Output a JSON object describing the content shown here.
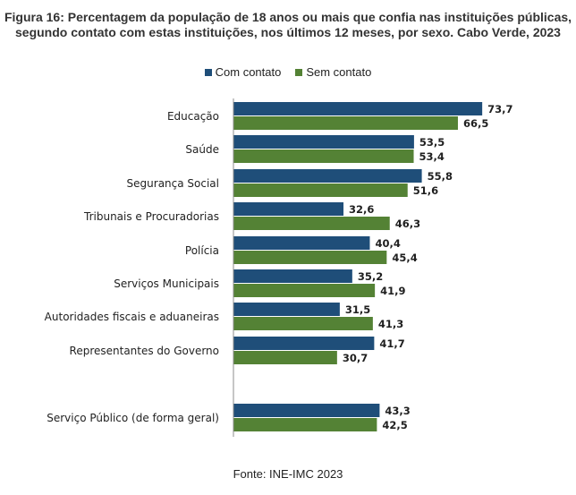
{
  "title_line1": "Figura 16: Percentagem da população de 18 anos ou mais que confia nas instituições públicas,",
  "title_line2": "segundo contato com estas instituições, nos últimos 12 meses, por sexo. Cabo Verde, 2023",
  "source": "Fonte: INE-IMC 2023",
  "colors": {
    "com": "#1f4e79",
    "sem": "#548235"
  },
  "chart_data": {
    "type": "bar",
    "orientation": "horizontal",
    "categories": [
      "Educação",
      "Saúde",
      "Segurança Social",
      "Tribunais e Procuradorias",
      "Polícia",
      "Serviços Municipais",
      "Autoridades fiscais e aduaneiras",
      "Representantes do Governo",
      "Serviço Público (de forma geral)"
    ],
    "series": [
      {
        "name": "Com contato",
        "values": [
          73.7,
          53.5,
          55.8,
          32.6,
          40.4,
          35.2,
          31.5,
          41.7,
          43.3
        ],
        "labels": [
          "73,7",
          "53,5",
          "55,8",
          "32,6",
          "40,4",
          "35,2",
          "31,5",
          "41,7",
          "43,3"
        ]
      },
      {
        "name": "Sem contato",
        "values": [
          66.5,
          53.4,
          51.6,
          46.3,
          45.4,
          41.9,
          41.3,
          30.7,
          42.5
        ],
        "labels": [
          "66,5",
          "53,4",
          "51,6",
          "46,3",
          "45,4",
          "41,9",
          "41,3",
          "30,7",
          "42,5"
        ]
      }
    ],
    "xlim": [
      0,
      100
    ],
    "grid": false,
    "legend_position": "top"
  }
}
